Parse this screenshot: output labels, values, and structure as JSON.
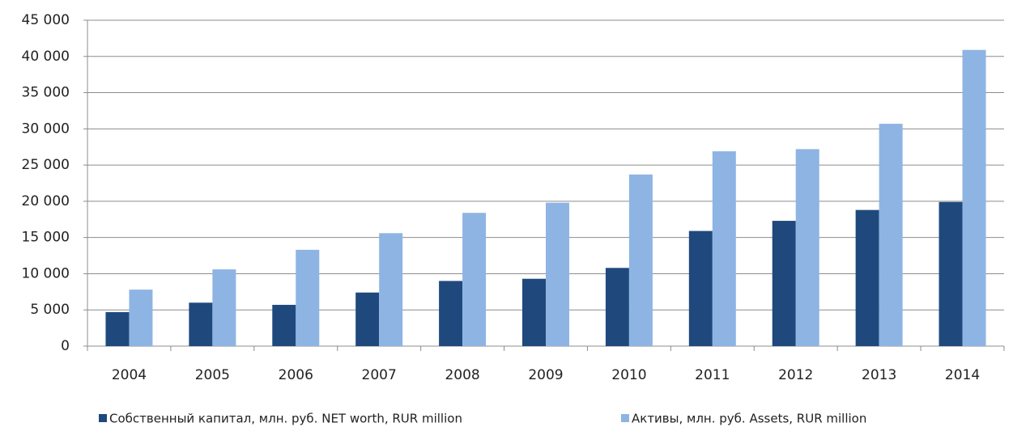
{
  "chart_data": {
    "type": "bar",
    "categories": [
      "2004",
      "2005",
      "2006",
      "2007",
      "2008",
      "2009",
      "2010",
      "2011",
      "2012",
      "2013",
      "2014"
    ],
    "series": [
      {
        "name": "Собственный капитал, млн. руб. NET worth, RUR million",
        "color": "#1f497d",
        "values": [
          4700,
          6000,
          5700,
          7400,
          9000,
          9300,
          10800,
          15900,
          17300,
          18800,
          19900
        ]
      },
      {
        "name": "Активы, млн. руб. Assets, RUR million",
        "color": "#8eb4e3",
        "values": [
          7800,
          10600,
          13300,
          15600,
          18400,
          19800,
          23700,
          26900,
          27200,
          30700,
          40900
        ]
      }
    ],
    "ylim": [
      0,
      45000
    ],
    "yticks": [
      0,
      {
        "value": 5000,
        "label": "5 000"
      },
      {
        "value": 10000,
        "label": "10 000"
      },
      {
        "value": 15000,
        "label": "15 000"
      },
      {
        "value": 20000,
        "label": "20 000"
      },
      {
        "value": 25000,
        "label": "25 000"
      },
      {
        "value": 30000,
        "label": "30 000"
      },
      {
        "value": 35000,
        "label": "35 000"
      },
      {
        "value": 40000,
        "label": "40 000"
      },
      {
        "value": 45000,
        "label": "45 000"
      }
    ],
    "grid": true
  }
}
